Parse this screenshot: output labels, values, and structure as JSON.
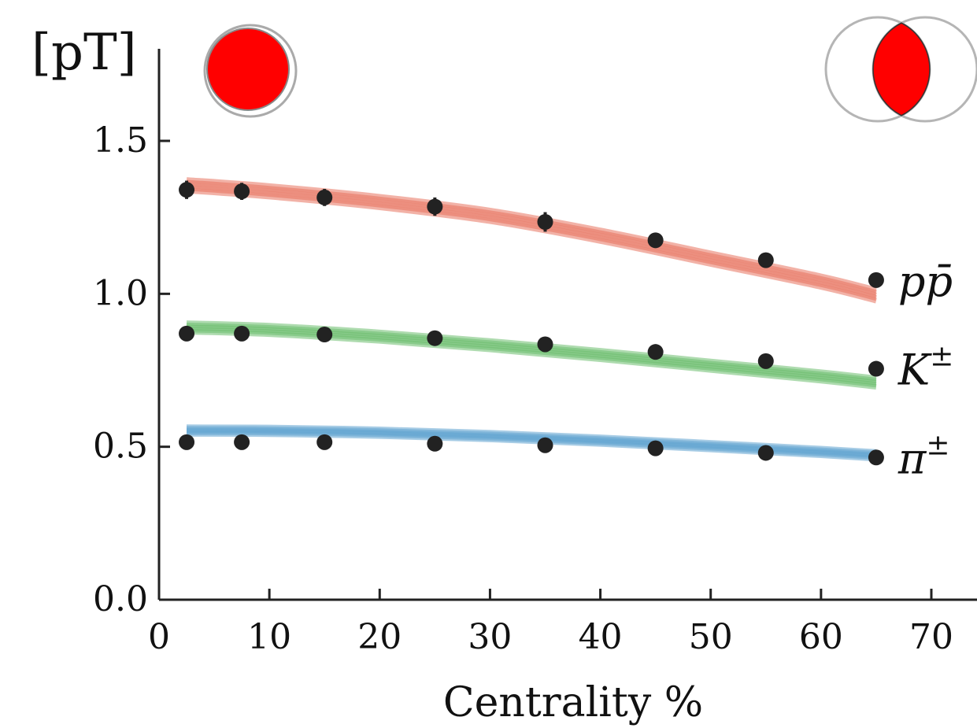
{
  "chart_data": {
    "type": "scatter",
    "ylabel": "[pT]",
    "xlabel": "Centrality %",
    "xlim": [
      0,
      73
    ],
    "ylim": [
      0,
      1.75
    ],
    "xticks": [
      0,
      10,
      20,
      30,
      40,
      50,
      60,
      70
    ],
    "yticks": [
      0.0,
      0.5,
      1.0,
      1.5
    ],
    "ytick_labels": [
      "0.0",
      "0.5",
      "1.0",
      "1.5"
    ],
    "grid": false,
    "icons": {
      "central": "central-collision-icon",
      "peripheral": "peripheral-collision-icon",
      "accent": "#ff0000"
    },
    "series": [
      {
        "name": "pp̄",
        "label_base": "pp̄",
        "label_sup": "",
        "color": "#e8735f",
        "points": [
          [
            2.5,
            1.34
          ],
          [
            7.5,
            1.335
          ],
          [
            15,
            1.315
          ],
          [
            25,
            1.285
          ],
          [
            35,
            1.235
          ],
          [
            45,
            1.175
          ],
          [
            55,
            1.11
          ],
          [
            65,
            1.045
          ]
        ],
        "errors": [
          0.03,
          0.028,
          0.028,
          0.03,
          0.032,
          0.025,
          0.02,
          0.02
        ],
        "model": [
          [
            2.5,
            1.355
          ],
          [
            10,
            1.335
          ],
          [
            20,
            1.3
          ],
          [
            30,
            1.255
          ],
          [
            40,
            1.19
          ],
          [
            50,
            1.115
          ],
          [
            60,
            1.04
          ],
          [
            65,
            0.995
          ]
        ],
        "band_width": 0.035
      },
      {
        "name": "K±",
        "label_base": "K",
        "label_sup": "±",
        "color": "#6cbd6e",
        "points": [
          [
            2.5,
            0.87
          ],
          [
            7.5,
            0.87
          ],
          [
            15,
            0.867
          ],
          [
            25,
            0.855
          ],
          [
            35,
            0.835
          ],
          [
            45,
            0.81
          ],
          [
            55,
            0.78
          ],
          [
            65,
            0.755
          ]
        ],
        "errors": [
          0.012,
          0.012,
          0.012,
          0.015,
          0.015,
          0.012,
          0.012,
          0.012
        ],
        "model": [
          [
            2.5,
            0.89
          ],
          [
            10,
            0.882
          ],
          [
            20,
            0.86
          ],
          [
            30,
            0.832
          ],
          [
            40,
            0.8
          ],
          [
            50,
            0.765
          ],
          [
            60,
            0.73
          ],
          [
            65,
            0.71
          ]
        ],
        "band_width": 0.028
      },
      {
        "name": "π±",
        "label_base": "π",
        "label_sup": "±",
        "color": "#5fa3cf",
        "points": [
          [
            2.5,
            0.515
          ],
          [
            7.5,
            0.515
          ],
          [
            15,
            0.515
          ],
          [
            25,
            0.51
          ],
          [
            35,
            0.505
          ],
          [
            45,
            0.495
          ],
          [
            55,
            0.48
          ],
          [
            65,
            0.465
          ]
        ],
        "errors": [
          0.008,
          0.008,
          0.008,
          0.008,
          0.008,
          0.008,
          0.008,
          0.008
        ],
        "model": [
          [
            2.5,
            0.553
          ],
          [
            10,
            0.552
          ],
          [
            20,
            0.546
          ],
          [
            30,
            0.535
          ],
          [
            40,
            0.52
          ],
          [
            50,
            0.502
          ],
          [
            60,
            0.483
          ],
          [
            65,
            0.472
          ]
        ],
        "band_width": 0.022
      }
    ]
  }
}
